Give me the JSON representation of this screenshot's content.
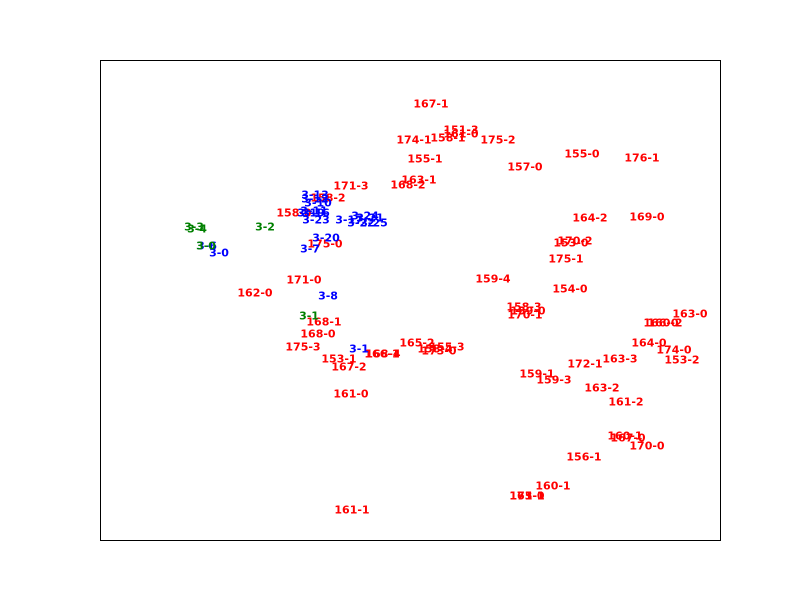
{
  "chart_data": {
    "type": "scatter",
    "title": "",
    "xlabel": "",
    "ylabel": "",
    "xlim": [
      0,
      620
    ],
    "ylim": [
      0,
      480
    ],
    "grid": false,
    "legend": "none",
    "axes_ticks": "hidden",
    "series": [
      {
        "color": "#ff0000",
        "points": [
          {
            "label": "167-1",
            "x": 331,
            "y": 436
          },
          {
            "label": "151-3",
            "x": 361,
            "y": 410
          },
          {
            "label": "161-0",
            "x": 361,
            "y": 406
          },
          {
            "label": "158-1",
            "x": 348,
            "y": 402
          },
          {
            "label": "174-1",
            "x": 314,
            "y": 400
          },
          {
            "label": "175-2",
            "x": 398,
            "y": 400
          },
          {
            "label": "155-0",
            "x": 482,
            "y": 386
          },
          {
            "label": "176-1",
            "x": 542,
            "y": 382
          },
          {
            "label": "155-1",
            "x": 325,
            "y": 381
          },
          {
            "label": "157-0",
            "x": 425,
            "y": 373
          },
          {
            "label": "163-1",
            "x": 319,
            "y": 360
          },
          {
            "label": "168-2",
            "x": 308,
            "y": 355
          },
          {
            "label": "171-3",
            "x": 251,
            "y": 354
          },
          {
            "label": "158-2",
            "x": 228,
            "y": 342
          },
          {
            "label": "158-0",
            "x": 194,
            "y": 327
          },
          {
            "label": "164-2",
            "x": 490,
            "y": 322
          },
          {
            "label": "169-0",
            "x": 547,
            "y": 323
          },
          {
            "label": "175-0",
            "x": 225,
            "y": 296
          },
          {
            "label": "170-2",
            "x": 475,
            "y": 299
          },
          {
            "label": "153-0",
            "x": 471,
            "y": 297
          },
          {
            "label": "175-1",
            "x": 466,
            "y": 281
          },
          {
            "label": "171-0",
            "x": 204,
            "y": 260
          },
          {
            "label": "159-4",
            "x": 393,
            "y": 261
          },
          {
            "label": "162-0",
            "x": 155,
            "y": 247
          },
          {
            "label": "154-0",
            "x": 470,
            "y": 251
          },
          {
            "label": "158-3",
            "x": 424,
            "y": 233
          },
          {
            "label": "159-0",
            "x": 428,
            "y": 229
          },
          {
            "label": "170-1",
            "x": 425,
            "y": 225
          },
          {
            "label": "163-0",
            "x": 590,
            "y": 226
          },
          {
            "label": "166-0",
            "x": 561,
            "y": 217
          },
          {
            "label": "160-2",
            "x": 565,
            "y": 217
          },
          {
            "label": "168-1",
            "x": 224,
            "y": 218
          },
          {
            "label": "168-0",
            "x": 218,
            "y": 206
          },
          {
            "label": "164-0",
            "x": 549,
            "y": 197
          },
          {
            "label": "174-0",
            "x": 574,
            "y": 190
          },
          {
            "label": "165-2",
            "x": 317,
            "y": 197
          },
          {
            "label": "158-4",
            "x": 335,
            "y": 191
          },
          {
            "label": "155-3",
            "x": 347,
            "y": 193
          },
          {
            "label": "173-0",
            "x": 339,
            "y": 189
          },
          {
            "label": "175-3",
            "x": 203,
            "y": 193
          },
          {
            "label": "166-1",
            "x": 282,
            "y": 186
          },
          {
            "label": "168-4",
            "x": 283,
            "y": 186
          },
          {
            "label": "153-1",
            "x": 239,
            "y": 181
          },
          {
            "label": "163-3",
            "x": 520,
            "y": 181
          },
          {
            "label": "153-2",
            "x": 582,
            "y": 180
          },
          {
            "label": "172-1",
            "x": 485,
            "y": 176
          },
          {
            "label": "167-2",
            "x": 249,
            "y": 173
          },
          {
            "label": "159-1",
            "x": 437,
            "y": 166
          },
          {
            "label": "159-3",
            "x": 454,
            "y": 160
          },
          {
            "label": "163-2",
            "x": 502,
            "y": 152
          },
          {
            "label": "161-0",
            "x": 251,
            "y": 146
          },
          {
            "label": "161-2",
            "x": 526,
            "y": 138
          },
          {
            "label": "160-1",
            "x": 525,
            "y": 104
          },
          {
            "label": "167-0",
            "x": 528,
            "y": 102
          },
          {
            "label": "170-0",
            "x": 547,
            "y": 94
          },
          {
            "label": "156-1",
            "x": 484,
            "y": 83
          },
          {
            "label": "160-1",
            "x": 453,
            "y": 54
          },
          {
            "label": "173-1",
            "x": 427,
            "y": 44
          },
          {
            "label": "171-1",
            "x": 427,
            "y": 44
          },
          {
            "label": "165-0",
            "x": 427,
            "y": 44
          },
          {
            "label": "161-1",
            "x": 252,
            "y": 30
          }
        ]
      },
      {
        "color": "#0000ff",
        "points": [
          {
            "label": "3-13",
            "x": 215,
            "y": 345
          },
          {
            "label": "3-12",
            "x": 215,
            "y": 341
          },
          {
            "label": "3-10",
            "x": 218,
            "y": 337
          },
          {
            "label": "3-11",
            "x": 214,
            "y": 329
          },
          {
            "label": "3-19",
            "x": 211,
            "y": 327
          },
          {
            "label": "3-16",
            "x": 216,
            "y": 327
          },
          {
            "label": "3-23",
            "x": 216,
            "y": 320
          },
          {
            "label": "3-17",
            "x": 249,
            "y": 320
          },
          {
            "label": "3-24",
            "x": 265,
            "y": 324
          },
          {
            "label": "3-21",
            "x": 270,
            "y": 322
          },
          {
            "label": "3-22",
            "x": 261,
            "y": 317
          },
          {
            "label": "3-25",
            "x": 274,
            "y": 317
          },
          {
            "label": "3-20",
            "x": 226,
            "y": 302
          },
          {
            "label": "3-7",
            "x": 210,
            "y": 291
          },
          {
            "label": "3-6",
            "x": 107,
            "y": 294
          },
          {
            "label": "3-0",
            "x": 119,
            "y": 287
          },
          {
            "label": "3-8",
            "x": 228,
            "y": 244
          },
          {
            "label": "3-1",
            "x": 259,
            "y": 191
          }
        ]
      },
      {
        "color": "#008000",
        "points": [
          {
            "label": "3-3",
            "x": 94,
            "y": 313
          },
          {
            "label": "3-4",
            "x": 97,
            "y": 311
          },
          {
            "label": "3-2",
            "x": 165,
            "y": 313
          },
          {
            "label": "3-0",
            "x": 106,
            "y": 294
          },
          {
            "label": "3-1",
            "x": 209,
            "y": 224
          }
        ]
      }
    ]
  }
}
